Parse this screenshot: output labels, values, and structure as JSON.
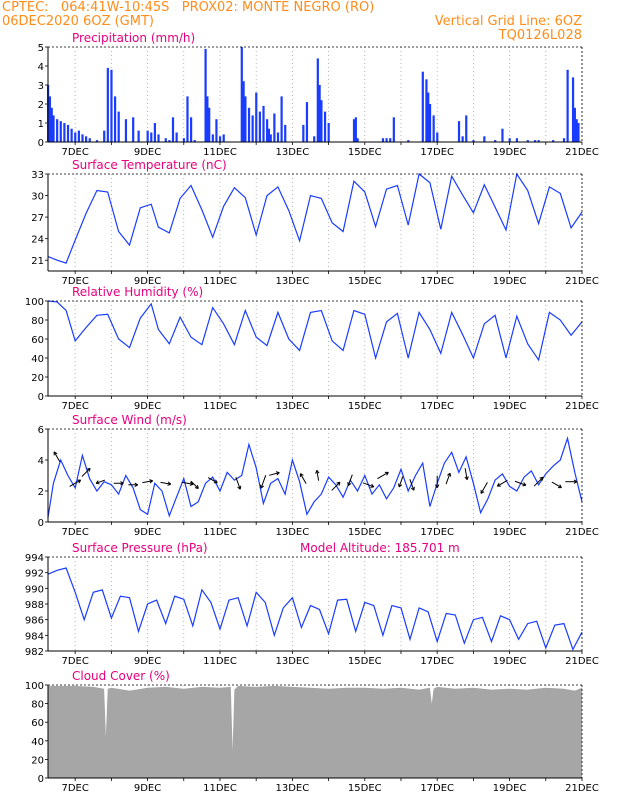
{
  "header": {
    "line1_left": "CPTEC:   064:41W-10:45S   PROX02: MONTE NEGRO (RO)",
    "line2_left": "06DEC2020 6OZ (GMT)",
    "line2_right": "Vertical Grid Line: 6OZ",
    "line3_right": "TQ0126L028"
  },
  "colors": {
    "header": "#ff8c1a",
    "title": "#e6007e",
    "series": "#1a3cff",
    "cloud": "#a6a6a6",
    "grid": "#9a9a9a"
  },
  "chart_data": [
    {
      "type": "bar",
      "title": "Precipitation (mm/h)",
      "xlabel": "",
      "ylabel": "",
      "x_ticks": [
        "7DEC",
        "9DEC",
        "11DEC",
        "13DEC",
        "15DEC",
        "17DEC",
        "19DEC",
        "21DEC"
      ],
      "y_ticks": [
        "0",
        "1",
        "2",
        "3",
        "4",
        "5"
      ],
      "ylim": [
        0,
        5
      ],
      "x_range_days": [
        6.25,
        21.0
      ],
      "series": [
        {
          "x": [
            6.25,
            6.3,
            6.35,
            6.4,
            6.5,
            6.6,
            6.7,
            6.8,
            6.9,
            7.0,
            7.1,
            7.2,
            7.3,
            7.4,
            7.6,
            7.8,
            7.9,
            8.0,
            8.1,
            8.2,
            8.4,
            8.6,
            8.75,
            9.0,
            9.1,
            9.2,
            9.3,
            9.5,
            9.6,
            9.7,
            9.8,
            10.0,
            10.1,
            10.2,
            10.3,
            10.6,
            10.65,
            10.7,
            10.8,
            10.9,
            11.0,
            11.1,
            11.6,
            11.65,
            11.7,
            11.8,
            11.9,
            12.0,
            12.1,
            12.2,
            12.3,
            12.35,
            12.4,
            12.5,
            12.6,
            12.7,
            12.8,
            13.3,
            13.4,
            13.6,
            13.7,
            13.75,
            13.8,
            13.9,
            14.0,
            14.7,
            14.75,
            14.8,
            15.5,
            15.6,
            15.7,
            15.8,
            16.2,
            16.6,
            16.7,
            16.75,
            16.8,
            16.9,
            17.0,
            17.6,
            17.7,
            17.8,
            18.0,
            18.3,
            18.6,
            18.8,
            19.0,
            19.2,
            19.5,
            19.7,
            19.8,
            20.2,
            20.5,
            20.6,
            20.75,
            20.8,
            20.85,
            20.9
          ],
          "values": [
            3.0,
            2.4,
            1.8,
            1.4,
            1.2,
            1.1,
            1.0,
            0.9,
            0.7,
            0.5,
            0.6,
            0.4,
            0.3,
            0.2,
            0.1,
            0.6,
            3.9,
            3.8,
            2.4,
            1.6,
            1.2,
            1.3,
            0.6,
            0.6,
            0.5,
            1.0,
            0.4,
            0.2,
            0.1,
            1.3,
            0.5,
            0.2,
            2.4,
            1.3,
            0.1,
            4.9,
            2.4,
            1.8,
            0.4,
            1.2,
            0.3,
            0.4,
            5.0,
            3.2,
            2.4,
            1.8,
            1.4,
            2.6,
            1.6,
            1.9,
            1.2,
            0.7,
            0.4,
            1.5,
            0.5,
            2.4,
            0.9,
            0.9,
            2.1,
            0.3,
            4.4,
            3.0,
            2.2,
            1.6,
            1.0,
            1.2,
            1.3,
            0.2,
            0.2,
            0.2,
            0.2,
            1.3,
            0.1,
            3.7,
            3.3,
            2.6,
            2.0,
            1.4,
            0.5,
            1.1,
            0.3,
            1.4,
            0.1,
            0.3,
            0.1,
            0.7,
            0.2,
            0.2,
            0.1,
            0.1,
            0.1,
            0.1,
            0.2,
            3.8,
            3.4,
            1.8,
            1.2,
            1.0
          ]
        }
      ]
    },
    {
      "type": "line",
      "title": "Surface Temperature (nC)",
      "xlabel": "",
      "ylabel": "",
      "x_ticks": [
        "7DEC",
        "9DEC",
        "11DEC",
        "13DEC",
        "15DEC",
        "17DEC",
        "19DEC",
        "21DEC"
      ],
      "y_ticks": [
        "21",
        "24",
        "27",
        "30",
        "33"
      ],
      "ylim": [
        19.5,
        33
      ],
      "x_range_days": [
        6.25,
        21.0
      ],
      "series": [
        {
          "x": [
            6.25,
            6.5,
            6.75,
            7.0,
            7.3,
            7.6,
            7.9,
            8.2,
            8.5,
            8.8,
            9.1,
            9.3,
            9.6,
            9.9,
            10.2,
            10.5,
            10.8,
            11.1,
            11.4,
            11.7,
            12.0,
            12.3,
            12.6,
            12.9,
            13.2,
            13.5,
            13.8,
            14.1,
            14.4,
            14.7,
            15.0,
            15.3,
            15.6,
            15.9,
            16.2,
            16.5,
            16.8,
            17.1,
            17.4,
            17.7,
            18.0,
            18.3,
            18.6,
            18.9,
            19.2,
            19.5,
            19.8,
            20.1,
            20.4,
            20.7,
            21.0
          ],
          "values": [
            21.5,
            21.0,
            20.6,
            23.8,
            27.5,
            30.7,
            30.5,
            25.0,
            23.1,
            28.3,
            28.8,
            25.6,
            24.8,
            29.6,
            31.4,
            28.0,
            24.2,
            28.5,
            31.1,
            29.7,
            24.5,
            30.0,
            31.2,
            27.9,
            23.7,
            30.0,
            29.6,
            26.2,
            25.0,
            32.0,
            30.5,
            25.7,
            30.9,
            31.4,
            25.9,
            33.0,
            31.8,
            25.3,
            32.7,
            30.1,
            27.6,
            31.5,
            28.4,
            25.2,
            33.0,
            30.7,
            26.1,
            31.2,
            30.3,
            25.5,
            27.7
          ]
        }
      ]
    },
    {
      "type": "line",
      "title": "Relative Humidity (%)",
      "xlabel": "",
      "ylabel": "",
      "x_ticks": [
        "7DEC",
        "9DEC",
        "11DEC",
        "13DEC",
        "15DEC",
        "17DEC",
        "19DEC",
        "21DEC"
      ],
      "y_ticks": [
        "0",
        "20",
        "40",
        "60",
        "80",
        "100"
      ],
      "ylim": [
        0,
        100
      ],
      "x_range_days": [
        6.25,
        21.0
      ],
      "series": [
        {
          "x": [
            6.25,
            6.5,
            6.75,
            7.0,
            7.3,
            7.6,
            7.9,
            8.2,
            8.5,
            8.8,
            9.1,
            9.3,
            9.6,
            9.9,
            10.2,
            10.5,
            10.8,
            11.1,
            11.4,
            11.7,
            12.0,
            12.3,
            12.6,
            12.9,
            13.2,
            13.5,
            13.8,
            14.1,
            14.4,
            14.7,
            15.0,
            15.3,
            15.6,
            15.9,
            16.2,
            16.5,
            16.8,
            17.1,
            17.4,
            17.7,
            18.0,
            18.3,
            18.6,
            18.9,
            19.2,
            19.5,
            19.8,
            20.1,
            20.4,
            20.7,
            21.0
          ],
          "values": [
            100,
            99,
            90,
            58,
            72,
            85,
            86,
            60,
            51,
            82,
            97,
            70,
            55,
            83,
            62,
            54,
            93,
            76,
            54,
            90,
            62,
            53,
            88,
            60,
            48,
            88,
            90,
            58,
            48,
            90,
            86,
            40,
            78,
            87,
            40,
            88,
            70,
            45,
            88,
            65,
            40,
            76,
            85,
            40,
            84,
            55,
            38,
            88,
            80,
            64,
            78
          ]
        }
      ]
    },
    {
      "type": "line",
      "title": "Surface Wind (m/s)",
      "xlabel": "",
      "ylabel": "",
      "x_ticks": [
        "7DEC",
        "9DEC",
        "11DEC",
        "13DEC",
        "15DEC",
        "17DEC",
        "19DEC",
        "21DEC"
      ],
      "y_ticks": [
        "0",
        "2",
        "4",
        "6"
      ],
      "ylim": [
        0,
        6
      ],
      "x_range_days": [
        6.25,
        21.0
      ],
      "series": [
        {
          "x": [
            6.25,
            6.4,
            6.6,
            6.8,
            7.0,
            7.2,
            7.4,
            7.6,
            7.8,
            8.0,
            8.2,
            8.4,
            8.6,
            8.8,
            9.0,
            9.2,
            9.4,
            9.6,
            9.8,
            10.0,
            10.2,
            10.4,
            10.6,
            10.8,
            11.0,
            11.2,
            11.4,
            11.6,
            11.8,
            12.0,
            12.2,
            12.4,
            12.6,
            12.8,
            13.0,
            13.2,
            13.4,
            13.6,
            13.8,
            14.0,
            14.2,
            14.4,
            14.6,
            14.8,
            15.0,
            15.2,
            15.4,
            15.6,
            15.8,
            16.0,
            16.2,
            16.4,
            16.6,
            16.8,
            17.0,
            17.2,
            17.4,
            17.6,
            17.8,
            18.0,
            18.2,
            18.4,
            18.6,
            18.8,
            19.0,
            19.2,
            19.4,
            19.6,
            19.8,
            20.0,
            20.2,
            20.4,
            20.6,
            20.8,
            21.0
          ],
          "values": [
            0.3,
            2.5,
            4.0,
            3.0,
            2.2,
            4.3,
            2.8,
            2.0,
            2.6,
            2.4,
            1.8,
            3.0,
            2.2,
            0.8,
            0.5,
            2.5,
            2.0,
            0.4,
            1.6,
            2.8,
            1.0,
            1.3,
            2.5,
            2.9,
            2.0,
            3.2,
            2.7,
            3.0,
            5.0,
            3.5,
            1.2,
            2.5,
            2.8,
            1.8,
            4.0,
            2.6,
            0.5,
            1.3,
            1.8,
            2.9,
            2.4,
            1.6,
            2.7,
            2.0,
            3.0,
            1.8,
            2.4,
            1.5,
            2.2,
            3.4,
            2.0,
            3.0,
            3.8,
            1.0,
            2.5,
            3.8,
            4.5,
            3.2,
            4.2,
            2.5,
            0.6,
            1.5,
            2.7,
            3.1,
            2.3,
            2.0,
            2.9,
            3.3,
            2.4,
            3.1,
            3.6,
            4.0,
            5.4,
            3.2,
            1.3
          ]
        }
      ],
      "wind_arrows": {
        "x": [
          6.5,
          7.0,
          7.3,
          7.7,
          8.2,
          8.6,
          9.0,
          9.5,
          10.1,
          10.3,
          10.8,
          11.5,
          12.2,
          12.5,
          13.3,
          13.7,
          14.2,
          14.6,
          15.1,
          15.5,
          16.0,
          16.3,
          17.0,
          17.3,
          17.8,
          18.3,
          18.8,
          19.3,
          19.8,
          20.3,
          20.7
        ],
        "dir_deg": [
          330,
          60,
          45,
          250,
          90,
          90,
          80,
          100,
          100,
          135,
          120,
          160,
          200,
          75,
          330,
          350,
          45,
          200,
          110,
          60,
          200,
          160,
          180,
          20,
          170,
          210,
          240,
          110,
          45,
          120,
          90
        ],
        "speed": [
          3.0,
          3.5,
          3.0,
          2.0,
          2.2,
          2.0,
          2.5,
          2.5,
          3.0,
          2.5,
          2.5,
          3.5,
          4.0,
          2.5,
          3.0,
          2.5,
          3.0,
          3.0,
          3.0,
          3.5,
          2.8,
          3.0,
          3.2,
          3.0,
          3.0,
          3.5,
          3.0,
          3.0,
          3.5,
          2.8,
          3.0
        ],
        "y": [
          4.2,
          2.5,
          3.2,
          2.6,
          2.5,
          2.4,
          2.6,
          2.5,
          2.5,
          2.4,
          2.7,
          2.5,
          2.6,
          3.1,
          2.8,
          3.0,
          2.3,
          2.7,
          2.4,
          3.0,
          2.6,
          2.4,
          2.6,
          2.8,
          3.1,
          2.2,
          2.5,
          2.5,
          2.6,
          2.4,
          2.6
        ]
      }
    },
    {
      "type": "line",
      "title": "Surface Pressure (hPa)",
      "annotation": "Model Altitude: 185.701 m",
      "xlabel": "",
      "ylabel": "",
      "x_ticks": [
        "7DEC",
        "9DEC",
        "11DEC",
        "13DEC",
        "15DEC",
        "17DEC",
        "19DEC",
        "21DEC"
      ],
      "y_ticks": [
        "982",
        "984",
        "986",
        "988",
        "990",
        "992",
        "994"
      ],
      "ylim": [
        982,
        994
      ],
      "x_range_days": [
        6.25,
        21.0
      ],
      "series": [
        {
          "x": [
            6.25,
            6.5,
            6.75,
            7.0,
            7.25,
            7.5,
            7.75,
            8.0,
            8.25,
            8.5,
            8.75,
            9.0,
            9.25,
            9.5,
            9.75,
            10.0,
            10.25,
            10.5,
            10.75,
            11.0,
            11.25,
            11.5,
            11.75,
            12.0,
            12.25,
            12.5,
            12.75,
            13.0,
            13.25,
            13.5,
            13.75,
            14.0,
            14.25,
            14.5,
            14.75,
            15.0,
            15.25,
            15.5,
            15.75,
            16.0,
            16.25,
            16.5,
            16.75,
            17.0,
            17.25,
            17.5,
            17.75,
            18.0,
            18.25,
            18.5,
            18.75,
            19.0,
            19.25,
            19.5,
            19.75,
            20.0,
            20.25,
            20.5,
            20.75,
            21.0
          ],
          "values": [
            991.8,
            992.3,
            992.6,
            989.5,
            986.0,
            989.5,
            989.8,
            986.2,
            989.0,
            988.8,
            984.5,
            988.0,
            988.5,
            985.5,
            989.0,
            988.6,
            985.2,
            989.8,
            988.2,
            984.8,
            988.5,
            988.8,
            985.2,
            989.5,
            988.2,
            984.0,
            987.5,
            988.8,
            985.0,
            987.8,
            987.3,
            984.2,
            988.5,
            988.6,
            984.5,
            988.2,
            987.8,
            984.0,
            987.8,
            987.5,
            983.5,
            987.5,
            987.0,
            983.2,
            986.8,
            986.6,
            983.0,
            986.0,
            986.3,
            983.2,
            986.5,
            986.0,
            983.5,
            985.5,
            985.8,
            982.4,
            985.3,
            985.5,
            982.2,
            984.4
          ]
        }
      ]
    },
    {
      "type": "area",
      "title": "Cloud Cover (%)",
      "xlabel": "",
      "ylabel": "",
      "x_ticks": [
        "7DEC",
        "9DEC",
        "11DEC",
        "13DEC",
        "15DEC",
        "17DEC",
        "19DEC",
        "21DEC"
      ],
      "y_ticks": [
        "0",
        "20",
        "40",
        "60",
        "80",
        "100"
      ],
      "ylim": [
        0,
        100
      ],
      "x_range_days": [
        6.25,
        21.0
      ],
      "series": [
        {
          "x": [
            6.25,
            6.5,
            7.0,
            7.5,
            7.8,
            7.85,
            7.9,
            8.0,
            8.5,
            9.0,
            9.5,
            10.0,
            10.5,
            11.0,
            11.3,
            11.35,
            11.4,
            11.5,
            12.0,
            12.5,
            13.0,
            13.5,
            14.0,
            14.5,
            15.0,
            15.5,
            16.0,
            16.5,
            16.8,
            16.85,
            16.9,
            17.0,
            17.5,
            18.0,
            18.5,
            19.0,
            19.5,
            20.0,
            20.5,
            20.8,
            21.0
          ],
          "values": [
            99,
            99,
            99,
            98,
            96,
            45,
            96,
            97,
            94,
            97,
            98,
            96,
            98,
            97,
            98,
            30,
            95,
            99,
            98,
            99,
            98,
            97,
            96,
            97,
            97,
            96,
            97,
            95,
            97,
            80,
            96,
            98,
            96,
            97,
            95,
            96,
            95,
            97,
            96,
            94,
            97
          ]
        }
      ]
    }
  ]
}
